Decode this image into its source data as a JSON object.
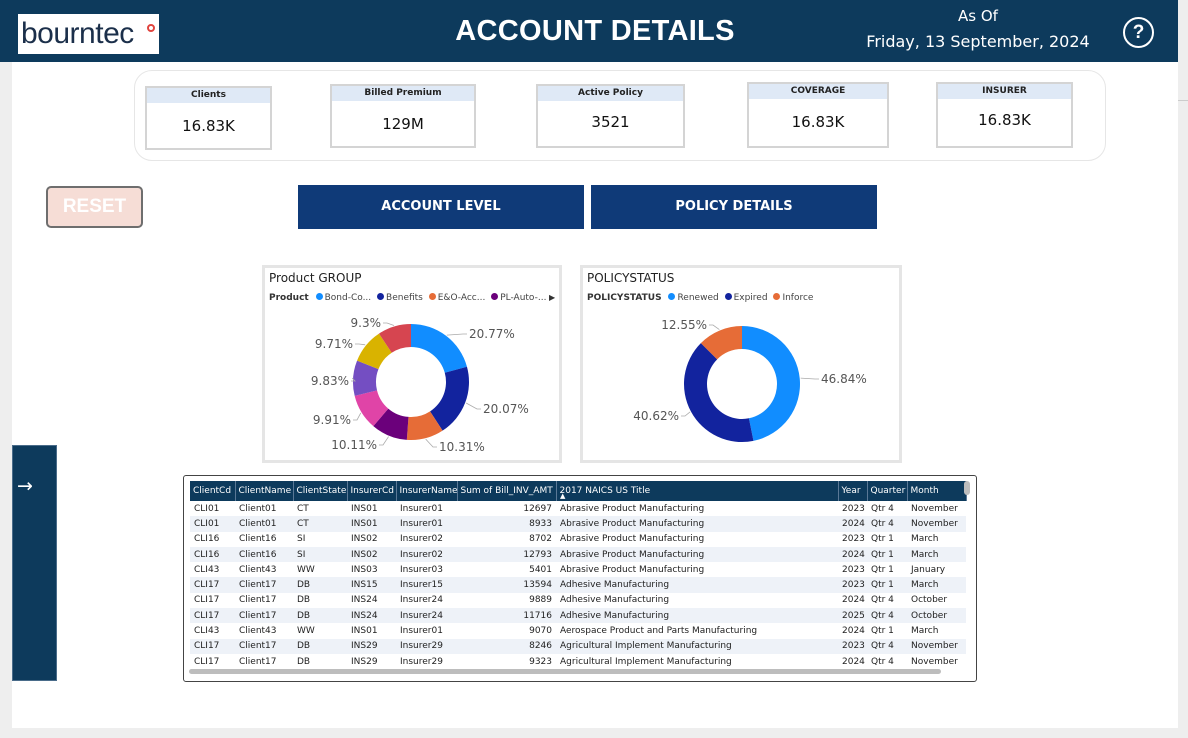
{
  "header": {
    "logo_text": "bourntec",
    "title": "ACCOUNT DETAILS",
    "as_of_label": "As Of",
    "date": "Friday, 13 September, 2024",
    "help_icon": "question-circle-icon",
    "help_glyph": "?"
  },
  "kpis": [
    {
      "label": "Clients",
      "value": "16.83K"
    },
    {
      "label": "Billed Premium",
      "value": "129M"
    },
    {
      "label": "Active Policy",
      "value": "3521"
    },
    {
      "label": "COVERAGE",
      "value": "16.83K"
    },
    {
      "label": "INSURER",
      "value": "16.83K"
    }
  ],
  "buttons": {
    "reset": "RESET",
    "account_level": "ACCOUNT LEVEL",
    "policy_details": "POLICY DETAILS"
  },
  "colors": {
    "header_bg": "#0d3a5c",
    "nav_button_bg": "#0f3a78",
    "reset_bg": "#f6ddd6"
  },
  "side_panel": {
    "icon": "arrow-right-icon",
    "glyph": "→"
  },
  "product_chart": {
    "title": "Product GROUP",
    "legend_title": "Product",
    "legend_items": [
      {
        "label": "Bond-Co...",
        "color": "#118dff"
      },
      {
        "label": "Benefits",
        "color": "#12239e"
      },
      {
        "label": "E&O-Acc...",
        "color": "#e66c37"
      },
      {
        "label": "PL-Auto-...",
        "color": "#6b007b"
      }
    ],
    "legend_more_icon": "triangle-right-icon",
    "legend_more_glyph": "▶"
  },
  "policy_chart": {
    "title": "POLICYSTATUS",
    "legend_title": "POLICYSTATUS",
    "legend_items": [
      {
        "label": "Renewed",
        "color": "#118dff"
      },
      {
        "label": "Expired",
        "color": "#12239e"
      },
      {
        "label": "Inforce",
        "color": "#e66c37"
      }
    ]
  },
  "chart_data": [
    {
      "type": "pie",
      "title": "Product GROUP",
      "legend_title": "Product",
      "categories": [
        "Bond-Co...",
        "Benefits",
        "E&O-Acc...",
        "PL-Auto-...",
        "",
        "",
        "",
        ""
      ],
      "values": [
        20.77,
        20.07,
        10.31,
        10.11,
        9.91,
        9.83,
        9.71,
        9.3
      ],
      "labels": [
        "20.77%",
        "20.07%",
        "10.31%",
        "10.11%",
        "9.91%",
        "9.83%",
        "9.71%",
        "9.3%"
      ],
      "colors": [
        "#118dff",
        "#12239e",
        "#e66c37",
        "#6b007b",
        "#e044a7",
        "#744ec2",
        "#d9b300",
        "#d64550"
      ],
      "legend_position": "top-left"
    },
    {
      "type": "pie",
      "title": "POLICYSTATUS",
      "legend_title": "POLICYSTATUS",
      "categories": [
        "Renewed",
        "Expired",
        "Inforce"
      ],
      "values": [
        46.84,
        40.62,
        12.55
      ],
      "labels": [
        "46.84%",
        "40.62%",
        "12.55%"
      ],
      "colors": [
        "#118dff",
        "#12239e",
        "#e66c37"
      ],
      "legend_position": "top-left"
    }
  ],
  "table": {
    "columns": [
      "ClientCd",
      "ClientName",
      "ClientState",
      "InsurerCd",
      "InsurerName",
      "Sum of Bill_INV_AMT",
      "2017 NAICS US Title",
      "Year",
      "Quarter",
      "Month"
    ],
    "sort_icon": "sort-ascending-icon",
    "sort_glyph": "▲",
    "rows": [
      [
        "CLI01",
        "Client01",
        "CT",
        "INS01",
        "Insurer01",
        "12697",
        "Abrasive Product Manufacturing",
        "2023",
        "Qtr 4",
        "November"
      ],
      [
        "CLI01",
        "Client01",
        "CT",
        "INS01",
        "Insurer01",
        "8933",
        "Abrasive Product Manufacturing",
        "2024",
        "Qtr 4",
        "November"
      ],
      [
        "CLI16",
        "Client16",
        "SI",
        "INS02",
        "Insurer02",
        "8702",
        "Abrasive Product Manufacturing",
        "2023",
        "Qtr 1",
        "March"
      ],
      [
        "CLI16",
        "Client16",
        "SI",
        "INS02",
        "Insurer02",
        "12793",
        "Abrasive Product Manufacturing",
        "2024",
        "Qtr 1",
        "March"
      ],
      [
        "CLI43",
        "Client43",
        "WW",
        "INS03",
        "Insurer03",
        "5401",
        "Abrasive Product Manufacturing",
        "2023",
        "Qtr 1",
        "January"
      ],
      [
        "CLI17",
        "Client17",
        "DB",
        "INS15",
        "Insurer15",
        "13594",
        "Adhesive Manufacturing",
        "2023",
        "Qtr 1",
        "March"
      ],
      [
        "CLI17",
        "Client17",
        "DB",
        "INS24",
        "Insurer24",
        "9889",
        "Adhesive Manufacturing",
        "2024",
        "Qtr 4",
        "October"
      ],
      [
        "CLI17",
        "Client17",
        "DB",
        "INS24",
        "Insurer24",
        "11716",
        "Adhesive Manufacturing",
        "2025",
        "Qtr 4",
        "October"
      ],
      [
        "CLI43",
        "Client43",
        "WW",
        "INS01",
        "Insurer01",
        "9070",
        "Aerospace Product and Parts Manufacturing",
        "2024",
        "Qtr 1",
        "March"
      ],
      [
        "CLI17",
        "Client17",
        "DB",
        "INS29",
        "Insurer29",
        "8246",
        "Agricultural Implement Manufacturing",
        "2023",
        "Qtr 4",
        "November"
      ],
      [
        "CLI17",
        "Client17",
        "DB",
        "INS29",
        "Insurer29",
        "9323",
        "Agricultural Implement Manufacturing",
        "2024",
        "Qtr 4",
        "November"
      ]
    ]
  }
}
